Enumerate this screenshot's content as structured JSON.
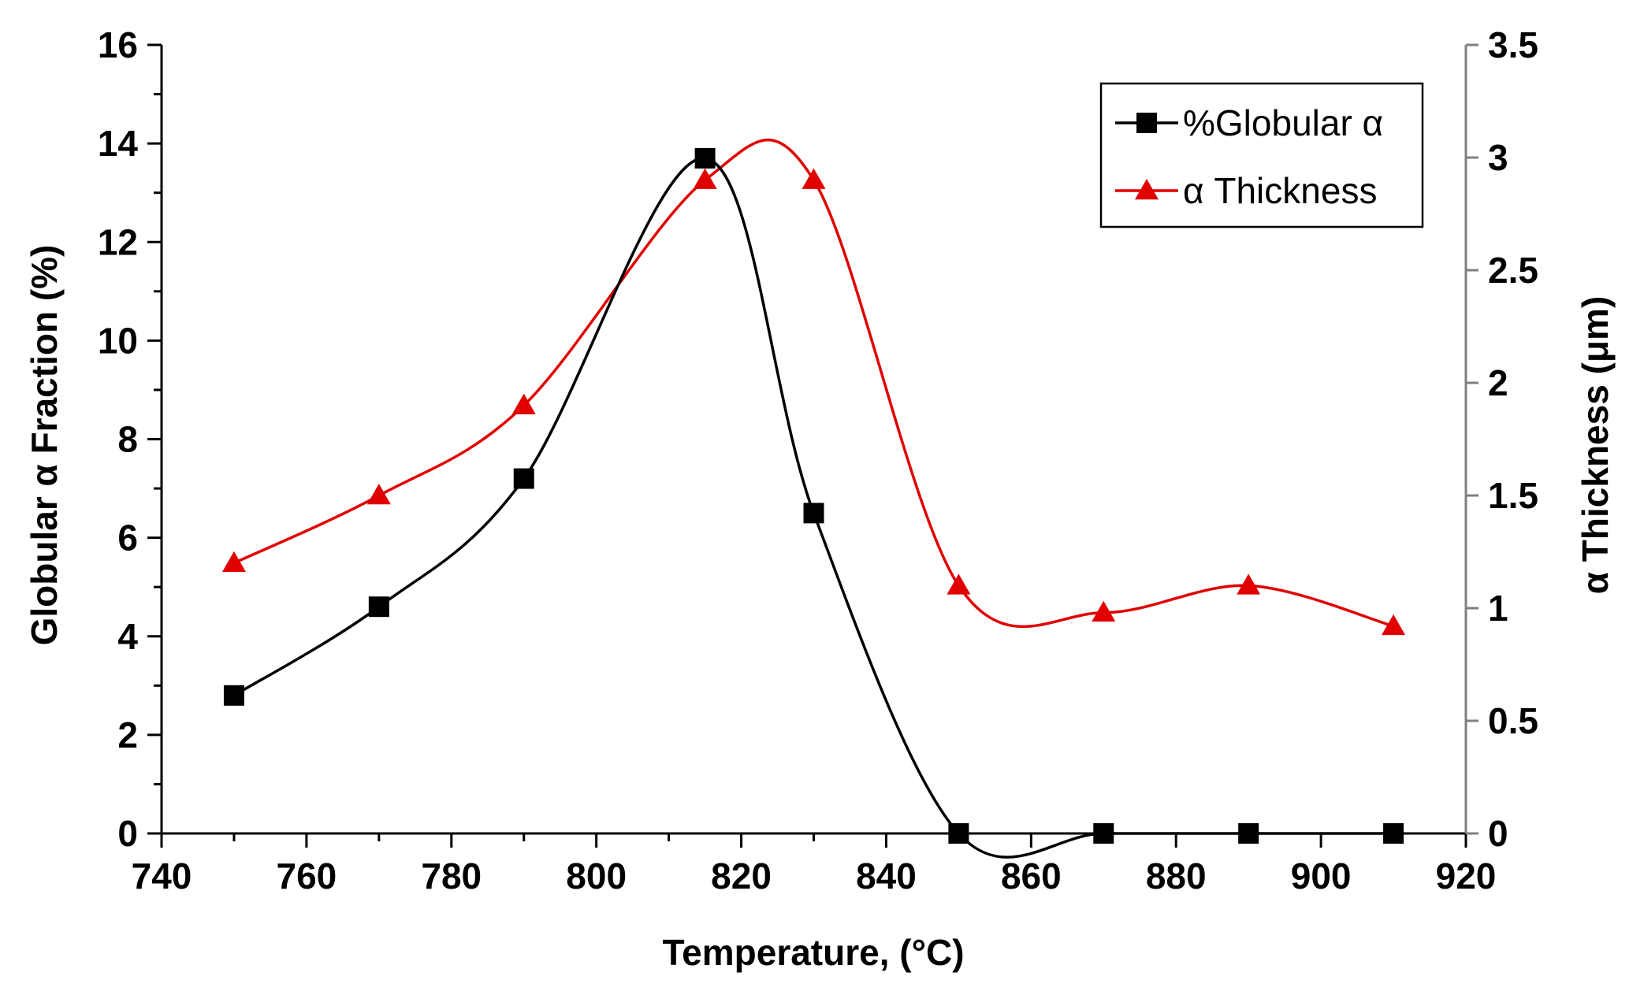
{
  "chart_data": {
    "type": "line",
    "title": "",
    "xlabel": "Temperature, (°C)",
    "ylabel": "Globular α Fraction (%)",
    "y2label": "α Thickness (μm)",
    "xlim": [
      740,
      920
    ],
    "ylim": [
      0,
      16
    ],
    "y2lim": [
      0,
      3.5
    ],
    "x_ticks": [
      740,
      760,
      780,
      800,
      820,
      840,
      860,
      880,
      900,
      920
    ],
    "y_ticks": [
      0,
      2,
      4,
      6,
      8,
      10,
      12,
      14,
      16
    ],
    "y2_ticks": [
      {
        "value": 0,
        "label": "0"
      },
      {
        "value": 0.5,
        "label": "0.5"
      },
      {
        "value": 1,
        "label": "1"
      },
      {
        "value": 1.5,
        "label": "1.5"
      },
      {
        "value": 2,
        "label": "2"
      },
      {
        "value": 2.5,
        "label": "2.5"
      },
      {
        "value": 3,
        "label": "3"
      },
      {
        "value": 3.5,
        "label": "3.5"
      }
    ],
    "grid": false,
    "legend_position": "top-right",
    "series": [
      {
        "name": "%Globular α",
        "axis": "left",
        "color": "#000000",
        "marker": "square",
        "smooth": true,
        "x": [
          750,
          770,
          790,
          815,
          830,
          850,
          870,
          890,
          910
        ],
        "y": [
          2.8,
          4.6,
          7.2,
          13.7,
          6.5,
          0,
          0,
          0,
          0
        ]
      },
      {
        "name": "α Thickness",
        "axis": "right",
        "color": "#e00000",
        "marker": "triangle",
        "smooth": true,
        "x": [
          750,
          770,
          790,
          815,
          830,
          850,
          870,
          890,
          910
        ],
        "y": [
          1.2,
          1.5,
          1.9,
          2.9,
          2.9,
          1.1,
          0.98,
          1.1,
          0.92
        ]
      }
    ]
  }
}
